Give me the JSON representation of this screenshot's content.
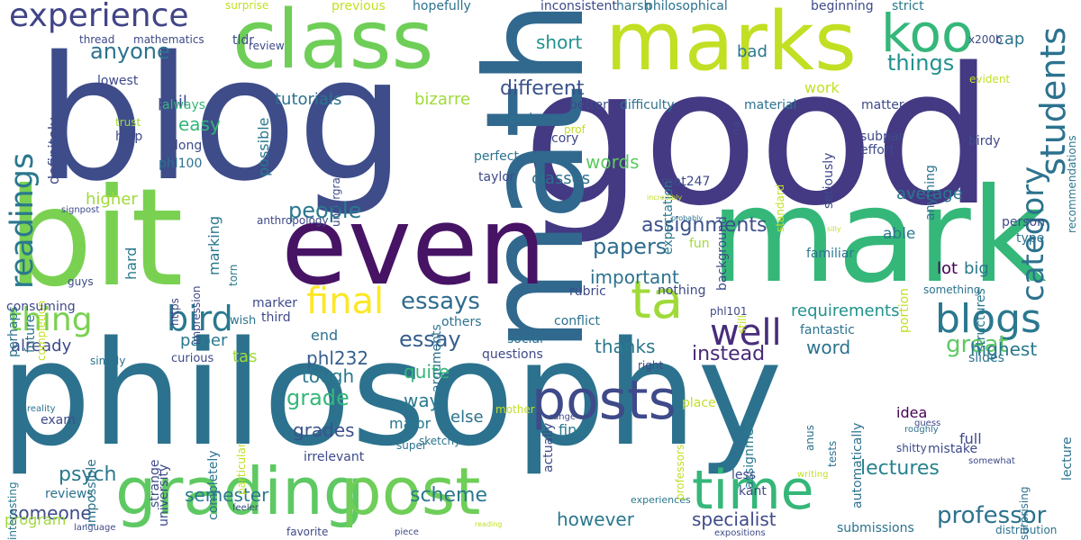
{
  "words": [
    {
      "text": "philosophy",
      "color": "#2c728e",
      "rot": 0
    },
    {
      "text": "blog",
      "color": "#3e4c8a",
      "rot": 0
    },
    {
      "text": "good",
      "color": "#443983",
      "rot": 0
    },
    {
      "text": "mark",
      "color": "#35b779",
      "rot": 0
    },
    {
      "text": "math",
      "color": "#31688e",
      "rot": -90
    },
    {
      "text": "bit",
      "color": "#7ad151",
      "rot": 0
    },
    {
      "text": "even",
      "color": "#471365",
      "rot": 0
    },
    {
      "text": "class",
      "color": "#6ece58",
      "rot": 0
    },
    {
      "text": "marks",
      "color": "#c2df23",
      "rot": 0
    },
    {
      "text": "grading",
      "color": "#5ec962",
      "rot": 0
    },
    {
      "text": "post",
      "color": "#6ece58",
      "rot": 0
    },
    {
      "text": "posts",
      "color": "#3e4a89",
      "rot": 0
    },
    {
      "text": "time",
      "color": "#35b779",
      "rot": 0
    },
    {
      "text": "koo",
      "color": "#35b779",
      "rot": 0
    },
    {
      "text": "ta",
      "color": "#a0da39",
      "rot": 0
    },
    {
      "text": "experience",
      "color": "#414487",
      "rot": 0
    },
    {
      "text": "readings",
      "color": "#2a788e",
      "rot": -90
    },
    {
      "text": "thing",
      "color": "#7ad151",
      "rot": 0
    },
    {
      "text": "blogs",
      "color": "#2a788e",
      "rot": 0
    },
    {
      "text": "bird",
      "color": "#2a788e",
      "rot": 0
    },
    {
      "text": "final",
      "color": "#fde725",
      "rot": 0
    },
    {
      "text": "well",
      "color": "#472d7b",
      "rot": 0
    },
    {
      "text": "students",
      "color": "#2c728e",
      "rot": -90
    },
    {
      "text": "category",
      "color": "#2c728e",
      "rot": -90
    },
    {
      "text": "professor",
      "color": "#2c728e",
      "rot": 0
    },
    {
      "text": "essays",
      "color": "#2f6c8e",
      "rot": 0
    },
    {
      "text": "essay",
      "color": "#355f8d",
      "rot": 0
    },
    {
      "text": "papers",
      "color": "#2f6c8e",
      "rot": 0
    },
    {
      "text": "great",
      "color": "#5ec962",
      "rot": 0
    },
    {
      "text": "assignments",
      "color": "#3b518b",
      "rot": 0
    },
    {
      "text": "people",
      "color": "#2a788e",
      "rot": 0
    },
    {
      "text": "things",
      "color": "#21918c",
      "rot": 0
    },
    {
      "text": "different",
      "color": "#3b528b",
      "rot": 0
    },
    {
      "text": "anyone",
      "color": "#2c728e",
      "rot": 0
    },
    {
      "text": "lectures",
      "color": "#26828e",
      "rot": 0
    },
    {
      "text": "scheme",
      "color": "#2a788e",
      "rot": 0
    },
    {
      "text": "specialist",
      "color": "#3e4a89",
      "rot": 0
    },
    {
      "text": "however",
      "color": "#2a788e",
      "rot": 0
    },
    {
      "text": "semester",
      "color": "#2a788e",
      "rot": 0
    },
    {
      "text": "psych",
      "color": "#2a788e",
      "rot": 0
    },
    {
      "text": "someone",
      "color": "#3e4a89",
      "rot": 0
    },
    {
      "text": "grade",
      "color": "#35b779",
      "rot": 0
    },
    {
      "text": "grades",
      "color": "#3b528b",
      "rot": 0
    },
    {
      "text": "tough",
      "color": "#2a788e",
      "rot": 0
    },
    {
      "text": "phl232",
      "color": "#355f8d",
      "rot": 0
    },
    {
      "text": "quite",
      "color": "#35b779",
      "rot": 0
    },
    {
      "text": "way",
      "color": "#2a788e",
      "rot": 0
    },
    {
      "text": "instead",
      "color": "#482878",
      "rot": 0
    },
    {
      "text": "thanks",
      "color": "#2a788e",
      "rot": 0
    },
    {
      "text": "word",
      "color": "#2c728e",
      "rot": 0
    },
    {
      "text": "highest",
      "color": "#2a788e",
      "rot": 0
    },
    {
      "text": "requirements",
      "color": "#21918c",
      "rot": 0
    },
    {
      "text": "important",
      "color": "#2c728e",
      "rot": 0
    },
    {
      "text": "words",
      "color": "#5ec962",
      "rot": 0
    },
    {
      "text": "classes",
      "color": "#2c728e",
      "rot": 0
    },
    {
      "text": "tutorials",
      "color": "#2c728e",
      "rot": 0
    },
    {
      "text": "bizarre",
      "color": "#a0da39",
      "rot": 0
    },
    {
      "text": "short",
      "color": "#21918c",
      "rot": 0
    },
    {
      "text": "cap",
      "color": "#2c728e",
      "rot": 0
    },
    {
      "text": "bad",
      "color": "#2a788e",
      "rot": 0
    },
    {
      "text": "phil",
      "color": "#3e4a89",
      "rot": 0
    },
    {
      "text": "easy",
      "color": "#35b779",
      "rot": 0
    },
    {
      "text": "definitely",
      "color": "#3e4a89",
      "rot": -90
    },
    {
      "text": "possible",
      "color": "#2a788e",
      "rot": -90
    },
    {
      "text": "work",
      "color": "#c2df23",
      "rot": 0
    },
    {
      "text": "average",
      "color": "#2a788e",
      "rot": 0
    },
    {
      "text": "able",
      "color": "#2a788e",
      "rot": 0
    },
    {
      "text": "lot",
      "color": "#440154",
      "rot": 0
    },
    {
      "text": "big",
      "color": "#2a788e",
      "rot": 0
    },
    {
      "text": "higher",
      "color": "#a0da39",
      "rot": 0
    },
    {
      "text": "hard",
      "color": "#2a788e",
      "rot": -90
    },
    {
      "text": "marking",
      "color": "#2a788e",
      "rot": -90
    },
    {
      "text": "paper",
      "color": "#2a788e",
      "rot": 0
    },
    {
      "text": "tas",
      "color": "#a0da39",
      "rot": 0
    },
    {
      "text": "end",
      "color": "#2c728e",
      "rot": 0
    },
    {
      "text": "already",
      "color": "#3e4a89",
      "rot": 0
    },
    {
      "text": "else",
      "color": "#2c728e",
      "rot": 0
    },
    {
      "text": "idea",
      "color": "#440154",
      "rot": 0
    },
    {
      "text": "full",
      "color": "#3e4a89",
      "rot": 0
    },
    {
      "text": "lecture",
      "color": "#2c728e",
      "rot": -90
    },
    {
      "text": "fine",
      "color": "#2a788e",
      "rot": 0
    },
    {
      "text": "major",
      "color": "#2a788e",
      "rot": 0
    },
    {
      "text": "impossible",
      "color": "#2c728e",
      "rot": -90
    },
    {
      "text": "strange",
      "color": "#3e4a89",
      "rot": -90
    },
    {
      "text": "completely",
      "color": "#2c728e",
      "rot": -90
    },
    {
      "text": "university",
      "color": "#3e4a89",
      "rot": -90
    },
    {
      "text": "actually",
      "color": "#3e4a89",
      "rot": -90
    },
    {
      "text": "assignment",
      "color": "#2a788e",
      "rot": -90
    },
    {
      "text": "automatically",
      "color": "#2c728e",
      "rot": -90
    },
    {
      "text": "program",
      "color": "#a0da39",
      "rot": 0
    },
    {
      "text": "reviews",
      "color": "#2c728e",
      "rot": 0
    },
    {
      "text": "exam",
      "color": "#3e4a89",
      "rot": 0
    },
    {
      "text": "interesting",
      "color": "#2a788e",
      "rot": -90
    },
    {
      "text": "surprise",
      "color": "#c2df23",
      "rot": 0
    },
    {
      "text": "previous",
      "color": "#c2df23",
      "rot": 0
    },
    {
      "text": "hopefully",
      "color": "#2c728e",
      "rot": 0
    },
    {
      "text": "inconsistent",
      "color": "#3e4a89",
      "rot": 0
    },
    {
      "text": "harsh",
      "color": "#2c728e",
      "rot": 0
    },
    {
      "text": "philosophical",
      "color": "#2c728e",
      "rot": 0
    },
    {
      "text": "experiences",
      "color": "#2a788e",
      "rot": 0
    },
    {
      "text": "beginning",
      "color": "#3e4a89",
      "rot": 0
    },
    {
      "text": "strict",
      "color": "#2a788e",
      "rot": 0
    },
    {
      "text": "thread",
      "color": "#3e4a89",
      "rot": 0
    },
    {
      "text": "mathematics",
      "color": "#3e4a89",
      "rot": 0
    },
    {
      "text": "tldr",
      "color": "#3e4a89",
      "rot": 0
    },
    {
      "text": "review",
      "color": "#3e4a89",
      "rot": 0
    },
    {
      "text": "x200b",
      "color": "#3e4a89",
      "rot": 0
    },
    {
      "text": "lowest",
      "color": "#3e4a89",
      "rot": 0
    },
    {
      "text": "always",
      "color": "#35b779",
      "rot": 0
    },
    {
      "text": "trust",
      "color": "#a0da39",
      "rot": 0
    },
    {
      "text": "help",
      "color": "#3e4a89",
      "rot": 0
    },
    {
      "text": "long",
      "color": "#3e4a89",
      "rot": 0
    },
    {
      "text": "phl100",
      "color": "#2c728e",
      "rot": 0
    },
    {
      "text": "better",
      "color": "#3e4a89",
      "rot": 0
    },
    {
      "text": "difficulty",
      "color": "#2c728e",
      "rot": 0
    },
    {
      "text": "material",
      "color": "#2c728e",
      "rot": 0
    },
    {
      "text": "matter",
      "color": "#3e4a89",
      "rot": 0
    },
    {
      "text": "evident",
      "color": "#c2df23",
      "rot": 0
    },
    {
      "text": "recommendations",
      "color": "#2a788e",
      "rot": -90
    },
    {
      "text": "need",
      "color": "#2c728e",
      "rot": 0
    },
    {
      "text": "cory",
      "color": "#3e4a89",
      "rot": 0
    },
    {
      "text": "prof",
      "color": "#c2df23",
      "rot": 0
    },
    {
      "text": "perfect",
      "color": "#2c728e",
      "rot": 0
    },
    {
      "text": "taylor",
      "color": "#3e4a89",
      "rot": 0
    },
    {
      "text": "arguments",
      "color": "#2c728e",
      "rot": -90
    },
    {
      "text": "undergrad",
      "color": "#3e4a89",
      "rot": -90
    },
    {
      "text": "expectation",
      "color": "#2a788e",
      "rot": -90
    },
    {
      "text": "background",
      "color": "#3e4a89",
      "rot": -90
    },
    {
      "text": "seriously",
      "color": "#3e4a89",
      "rot": -90
    },
    {
      "text": "anything",
      "color": "#2c728e",
      "rot": -90
    },
    {
      "text": "subpar",
      "color": "#3e4a89",
      "rot": 0
    },
    {
      "text": "effort",
      "color": "#3e4a89",
      "rot": 0
    },
    {
      "text": "birdy",
      "color": "#3e4a89",
      "rot": 0
    },
    {
      "text": "mat247",
      "color": "#3e4a89",
      "rot": 0
    },
    {
      "text": "standard",
      "color": "#c2df23",
      "rot": -90
    },
    {
      "text": "na",
      "color": "#3e4a89",
      "rot": -90
    },
    {
      "text": "person",
      "color": "#3e4a89",
      "rot": 0
    },
    {
      "text": "type",
      "color": "#2c728e",
      "rot": 0
    },
    {
      "text": "familiar",
      "color": "#2a788e",
      "rot": 0
    },
    {
      "text": "fun",
      "color": "#a0da39",
      "rot": 0
    },
    {
      "text": "portion",
      "color": "#c2df23",
      "rot": -90
    },
    {
      "text": "structures",
      "color": "#2a788e",
      "rot": -90
    },
    {
      "text": "something",
      "color": "#2c728e",
      "rot": 0
    },
    {
      "text": "nothing",
      "color": "#3e4a89",
      "rot": 0
    },
    {
      "text": "rubric",
      "color": "#3e4a89",
      "rot": 0
    },
    {
      "text": "still",
      "color": "#c2df23",
      "rot": -90
    },
    {
      "text": "phl101",
      "color": "#3e4a89",
      "rot": 0
    },
    {
      "text": "conflict",
      "color": "#2c728e",
      "rot": 0
    },
    {
      "text": "others",
      "color": "#2c728e",
      "rot": 0
    },
    {
      "text": "fantastic",
      "color": "#2c728e",
      "rot": 0
    },
    {
      "text": "slides",
      "color": "#2c728e",
      "rot": 0
    },
    {
      "text": "signpost",
      "color": "#3e4a89",
      "rot": 0
    },
    {
      "text": "completion",
      "color": "#c2df23",
      "rot": -90
    },
    {
      "text": "perhaps",
      "color": "#2c728e",
      "rot": -90
    },
    {
      "text": "future",
      "color": "#2c728e",
      "rot": -90
    },
    {
      "text": "guys",
      "color": "#3e4a89",
      "rot": 0
    },
    {
      "text": "https",
      "color": "#3e4a89",
      "rot": -90
    },
    {
      "text": "impression",
      "color": "#3e4a89",
      "rot": -90
    },
    {
      "text": "torn",
      "color": "#2a788e",
      "rot": -90
    },
    {
      "text": "anthropology",
      "color": "#3e4a89",
      "rot": 0
    },
    {
      "text": "marker",
      "color": "#3e4a89",
      "rot": 0
    },
    {
      "text": "wish",
      "color": "#2c728e",
      "rot": 0
    },
    {
      "text": "third",
      "color": "#3e4a89",
      "rot": 0
    },
    {
      "text": "consuming",
      "color": "#3e4a89",
      "rot": 0
    },
    {
      "text": "social",
      "color": "#2c728e",
      "rot": 0
    },
    {
      "text": "questions",
      "color": "#3e4a89",
      "rot": 0
    },
    {
      "text": "right",
      "color": "#3e4a89",
      "rot": 0
    },
    {
      "text": "curious",
      "color": "#3e4a89",
      "rot": 0
    },
    {
      "text": "simply",
      "color": "#2c728e",
      "rot": 0
    },
    {
      "text": "particular",
      "color": "#c2df23",
      "rot": -90
    },
    {
      "text": "super",
      "color": "#2c728e",
      "rot": 0
    },
    {
      "text": "mother",
      "color": "#c2df23",
      "rot": 0
    },
    {
      "text": "reality",
      "color": "#2c728e",
      "rot": 0
    },
    {
      "text": "range",
      "color": "#3e4a89",
      "rot": 0
    },
    {
      "text": "sketchy",
      "color": "#2c728e",
      "rot": 0
    },
    {
      "text": "irrelevant",
      "color": "#3e4a89",
      "rot": 0
    },
    {
      "text": "professors",
      "color": "#c2df23",
      "rot": -90
    },
    {
      "text": "place",
      "color": "#c2df23",
      "rot": 0
    },
    {
      "text": "anus",
      "color": "#2c728e",
      "rot": -90
    },
    {
      "text": "tests",
      "color": "#2c728e",
      "rot": -90
    },
    {
      "text": "guess",
      "color": "#3e4a89",
      "rot": 0
    },
    {
      "text": "roughly",
      "color": "#2c728e",
      "rot": 0
    },
    {
      "text": "shitty",
      "color": "#3e4a89",
      "rot": 0
    },
    {
      "text": "mistake",
      "color": "#3e4a89",
      "rot": 0
    },
    {
      "text": "somewhat",
      "color": "#3e4a89",
      "rot": 0
    },
    {
      "text": "surprising",
      "color": "#2c728e",
      "rot": -90
    },
    {
      "text": "less",
      "color": "#3e4a89",
      "rot": 0
    },
    {
      "text": "kant",
      "color": "#3e4a89",
      "rot": 0
    },
    {
      "text": "writing",
      "color": "#c2df23",
      "rot": 0
    },
    {
      "text": "submissions",
      "color": "#2c728e",
      "rot": 0
    },
    {
      "text": "distribution",
      "color": "#2c728e",
      "rot": 0
    },
    {
      "text": "expositions",
      "color": "#3e4a89",
      "rot": 0
    },
    {
      "text": "piece",
      "color": "#3e4a89",
      "rot": 0
    },
    {
      "text": "favorite",
      "color": "#3e4a89",
      "rot": 0
    },
    {
      "text": "language",
      "color": "#3e4a89",
      "rot": 0
    },
    {
      "text": "feeler",
      "color": "#3e4a89",
      "rot": 0
    },
    {
      "text": "reading",
      "color": "#c2df23",
      "rot": 0
    },
    {
      "text": "incredibly",
      "color": "#c2df23",
      "rot": 0
    },
    {
      "text": "probably",
      "color": "#2c728e",
      "rot": 0
    },
    {
      "text": "silly",
      "color": "#c2df23",
      "rot": 0
    }
  ]
}
